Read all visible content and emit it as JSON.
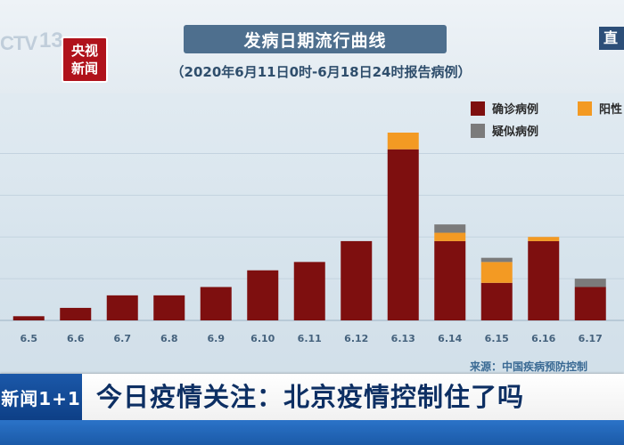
{
  "header": {
    "title": "发病日期流行曲线",
    "subtitle": "（2020年6月11日0时-6月18日24时报告病例）"
  },
  "logos": {
    "channel_letters": "CTV",
    "channel_number": "13",
    "news_line1": "央视",
    "news_line2": "新闻",
    "live_partial": "直"
  },
  "chart_data": {
    "type": "bar",
    "stacked": true,
    "categories": [
      "6.5",
      "6.6",
      "6.7",
      "6.8",
      "6.9",
      "6.10",
      "6.11",
      "6.12",
      "6.13",
      "6.14",
      "6.15",
      "6.16",
      "6.17"
    ],
    "series": [
      {
        "name": "确诊病例",
        "color": "#7e0f0f",
        "values": [
          1,
          3,
          6,
          6,
          8,
          12,
          14,
          19,
          41,
          19,
          9,
          19,
          8
        ]
      },
      {
        "name": "阳性",
        "color": "#f39a23",
        "values": [
          0,
          0,
          0,
          0,
          0,
          0,
          0,
          0,
          4,
          2,
          5,
          1,
          0
        ]
      },
      {
        "name": "疑似病例",
        "color": "#7b7b7b",
        "values": [
          0,
          0,
          0,
          0,
          0,
          0,
          0,
          0,
          0,
          2,
          1,
          0,
          2
        ]
      }
    ],
    "ylim": [
      0,
      45
    ],
    "gridlines": [
      10,
      20,
      30,
      40
    ],
    "legend_position": "top-right"
  },
  "source": "来源：中国疾病预防控制",
  "banner": {
    "tag": "新闻1+1",
    "headline": "今日疫情关注：北京疫情控制住了吗"
  }
}
